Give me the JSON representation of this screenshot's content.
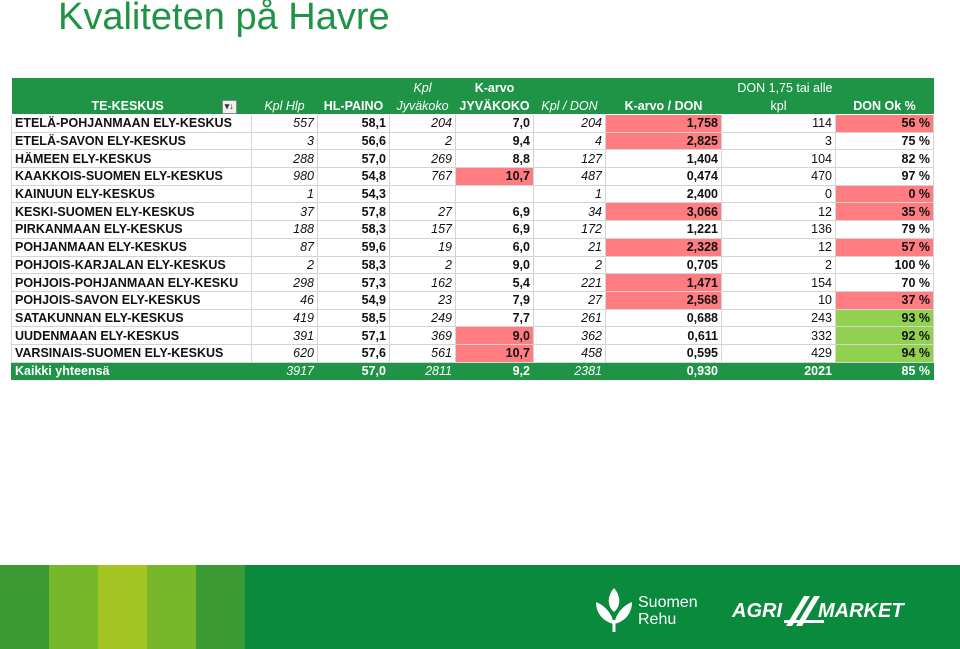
{
  "title": "Kvaliteten på Havre",
  "header_top": {
    "kpl_jyvakoko": "Kpl",
    "k_arvo_jyvakoko": "K-arvo",
    "don_alle": "DON 1,75 tai alle"
  },
  "header": {
    "te_keskus": "TE-KESKUS",
    "kpl_hlp": "Kpl Hlp",
    "hl_paino": "HL-PAINO",
    "kpl_jyvakoko": "Jyväkoko",
    "jyvakoko": "JYVÄKOKO",
    "kpl_don": "Kpl  / DON",
    "k_arvo_don": "K-arvo  / DON",
    "don_kpl": "kpl",
    "don_ok": "DON Ok %",
    "filter_icon": "filter-sort-icon"
  },
  "rows": [
    {
      "name": "ETELÄ-POHJANMAAN ELY-KESKUS",
      "kpl_hlp": "557",
      "hl": "58,1",
      "kpl_jyv": "204",
      "jyv": "7,0",
      "kpl_don": "204",
      "kdon": "1,758",
      "don_kpl": "114",
      "ok": "56 %"
    },
    {
      "name": "ETELÄ-SAVON ELY-KESKUS",
      "kpl_hlp": "3",
      "hl": "56,6",
      "kpl_jyv": "2",
      "jyv": "9,4",
      "kpl_don": "4",
      "kdon": "2,825",
      "don_kpl": "3",
      "ok": "75 %"
    },
    {
      "name": "HÄMEEN ELY-KESKUS",
      "kpl_hlp": "288",
      "hl": "57,0",
      "kpl_jyv": "269",
      "jyv": "8,8",
      "kpl_don": "127",
      "kdon": "1,404",
      "don_kpl": "104",
      "ok": "82 %"
    },
    {
      "name": "KAAKKOIS-SUOMEN ELY-KESKUS",
      "kpl_hlp": "980",
      "hl": "54,8",
      "kpl_jyv": "767",
      "jyv": "10,7",
      "kpl_don": "487",
      "kdon": "0,474",
      "don_kpl": "470",
      "ok": "97 %"
    },
    {
      "name": "KAINUUN ELY-KESKUS",
      "kpl_hlp": "1",
      "hl": "54,3",
      "kpl_jyv": "",
      "jyv": "",
      "kpl_don": "1",
      "kdon": "2,400",
      "don_kpl": "0",
      "ok": "0 %"
    },
    {
      "name": "KESKI-SUOMEN ELY-KESKUS",
      "kpl_hlp": "37",
      "hl": "57,8",
      "kpl_jyv": "27",
      "jyv": "6,9",
      "kpl_don": "34",
      "kdon": "3,066",
      "don_kpl": "12",
      "ok": "35 %"
    },
    {
      "name": "PIRKANMAAN ELY-KESKUS",
      "kpl_hlp": "188",
      "hl": "58,3",
      "kpl_jyv": "157",
      "jyv": "6,9",
      "kpl_don": "172",
      "kdon": "1,221",
      "don_kpl": "136",
      "ok": "79 %"
    },
    {
      "name": "POHJANMAAN ELY-KESKUS",
      "kpl_hlp": "87",
      "hl": "59,6",
      "kpl_jyv": "19",
      "jyv": "6,0",
      "kpl_don": "21",
      "kdon": "2,328",
      "don_kpl": "12",
      "ok": "57 %"
    },
    {
      "name": "POHJOIS-KARJALAN ELY-KESKUS",
      "kpl_hlp": "2",
      "hl": "58,3",
      "kpl_jyv": "2",
      "jyv": "9,0",
      "kpl_don": "2",
      "kdon": "0,705",
      "don_kpl": "2",
      "ok": "100 %"
    },
    {
      "name": "POHJOIS-POHJANMAAN ELY-KESKU",
      "kpl_hlp": "298",
      "hl": "57,3",
      "kpl_jyv": "162",
      "jyv": "5,4",
      "kpl_don": "221",
      "kdon": "1,471",
      "don_kpl": "154",
      "ok": "70 %"
    },
    {
      "name": "POHJOIS-SAVON ELY-KESKUS",
      "kpl_hlp": "46",
      "hl": "54,9",
      "kpl_jyv": "23",
      "jyv": "7,9",
      "kpl_don": "27",
      "kdon": "2,568",
      "don_kpl": "10",
      "ok": "37 %"
    },
    {
      "name": "SATAKUNNAN ELY-KESKUS",
      "kpl_hlp": "419",
      "hl": "58,5",
      "kpl_jyv": "249",
      "jyv": "7,7",
      "kpl_don": "261",
      "kdon": "0,688",
      "don_kpl": "243",
      "ok": "93 %"
    },
    {
      "name": "UUDENMAAN ELY-KESKUS",
      "kpl_hlp": "391",
      "hl": "57,1",
      "kpl_jyv": "369",
      "jyv": "9,0",
      "kpl_don": "362",
      "kdon": "0,611",
      "don_kpl": "332",
      "ok": "92 %"
    },
    {
      "name": "VARSINAIS-SUOMEN ELY-KESKUS",
      "kpl_hlp": "620",
      "hl": "57,6",
      "kpl_jyv": "561",
      "jyv": "10,7",
      "kpl_don": "458",
      "kdon": "0,595",
      "don_kpl": "429",
      "ok": "94 %"
    }
  ],
  "highlights": {
    "jyv_red_rows": [
      3,
      12,
      13
    ],
    "kdon_red_rows": [
      0,
      1,
      5,
      7,
      9,
      10
    ],
    "ok_red_rows": [
      0,
      4,
      5,
      7,
      10
    ],
    "ok_green_rows": [
      11,
      12,
      13
    ]
  },
  "total": {
    "name": "Kaikki yhteensä",
    "kpl_hlp": "3917",
    "hl": "57,0",
    "kpl_jyv": "2811",
    "jyv": "9,2",
    "kpl_don": "2381",
    "kdon": "0,930",
    "don_kpl": "2021",
    "ok": "85 %"
  },
  "colors": {
    "header_green": "#1f9446",
    "highlight_red": "#ff7c80",
    "highlight_green": "#92d050",
    "footer_green": "#0a8a3c",
    "footer_stripes": [
      "#3b9a34",
      "#77b82a",
      "#a3c423",
      "#77b82a",
      "#3b9a34"
    ]
  },
  "footer": {
    "suomen_rehu_line1": "Suomen",
    "suomen_rehu_line2": "Rehu",
    "agri": "AGRI",
    "market": "MARKET"
  }
}
